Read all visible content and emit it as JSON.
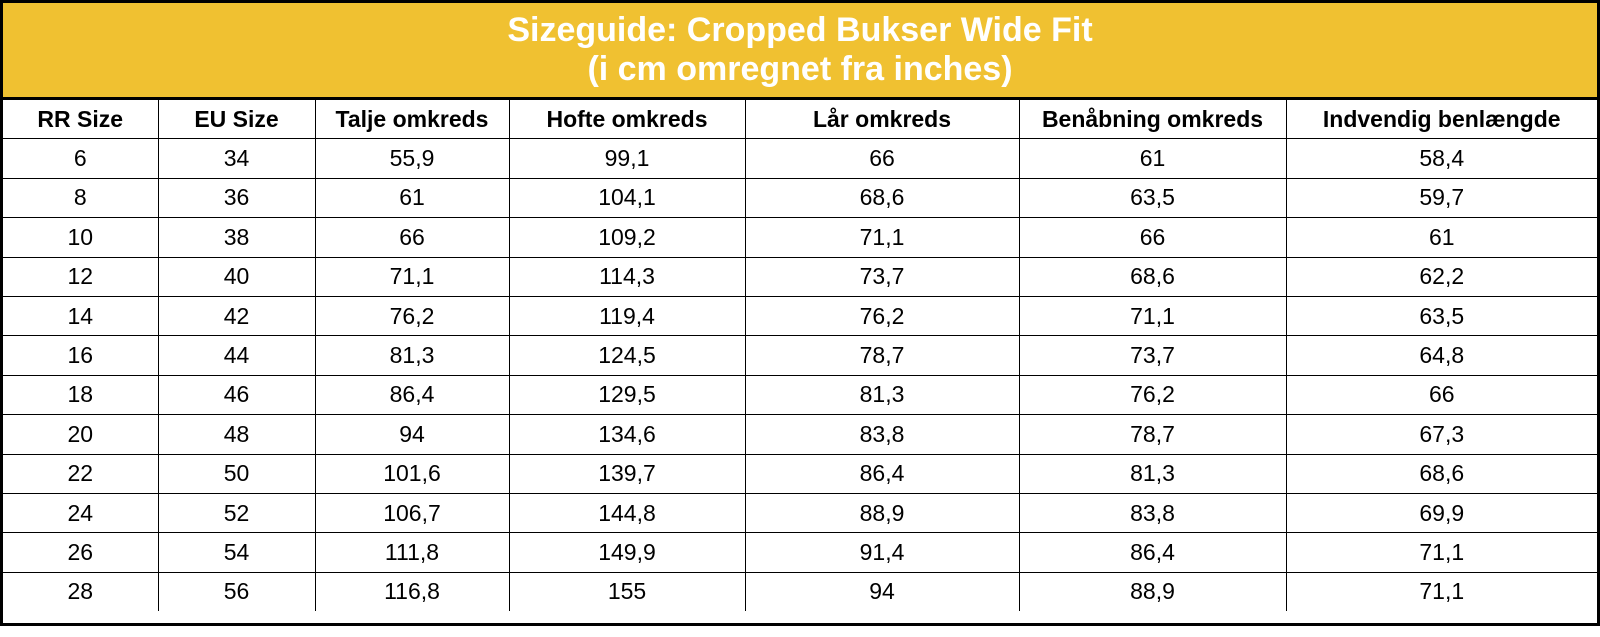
{
  "header": {
    "title": "Sizeguide: Cropped Bukser Wide Fit",
    "subtitle": "(i cm omregnet fra inches)"
  },
  "table": {
    "columns": [
      "RR Size",
      "EU Size",
      "Talje omkreds",
      "Hofte omkreds",
      "Lår omkreds",
      "Benåbning omkreds",
      "Indvendig benlængde"
    ],
    "rows": [
      [
        "6",
        "34",
        "55,9",
        "99,1",
        "66",
        "61",
        "58,4"
      ],
      [
        "8",
        "36",
        "61",
        "104,1",
        "68,6",
        "63,5",
        "59,7"
      ],
      [
        "10",
        "38",
        "66",
        "109,2",
        "71,1",
        "66",
        "61"
      ],
      [
        "12",
        "40",
        "71,1",
        "114,3",
        "73,7",
        "68,6",
        "62,2"
      ],
      [
        "14",
        "42",
        "76,2",
        "119,4",
        "76,2",
        "71,1",
        "63,5"
      ],
      [
        "16",
        "44",
        "81,3",
        "124,5",
        "78,7",
        "73,7",
        "64,8"
      ],
      [
        "18",
        "46",
        "86,4",
        "129,5",
        "81,3",
        "76,2",
        "66"
      ],
      [
        "20",
        "48",
        "94",
        "134,6",
        "83,8",
        "78,7",
        "67,3"
      ],
      [
        "22",
        "50",
        "101,6",
        "139,7",
        "86,4",
        "81,3",
        "68,6"
      ],
      [
        "24",
        "52",
        "106,7",
        "144,8",
        "88,9",
        "83,8",
        "69,9"
      ],
      [
        "26",
        "54",
        "111,8",
        "149,9",
        "91,4",
        "86,4",
        "71,1"
      ],
      [
        "28",
        "56",
        "116,8",
        "155",
        "94",
        "88,9",
        "71,1"
      ]
    ]
  }
}
